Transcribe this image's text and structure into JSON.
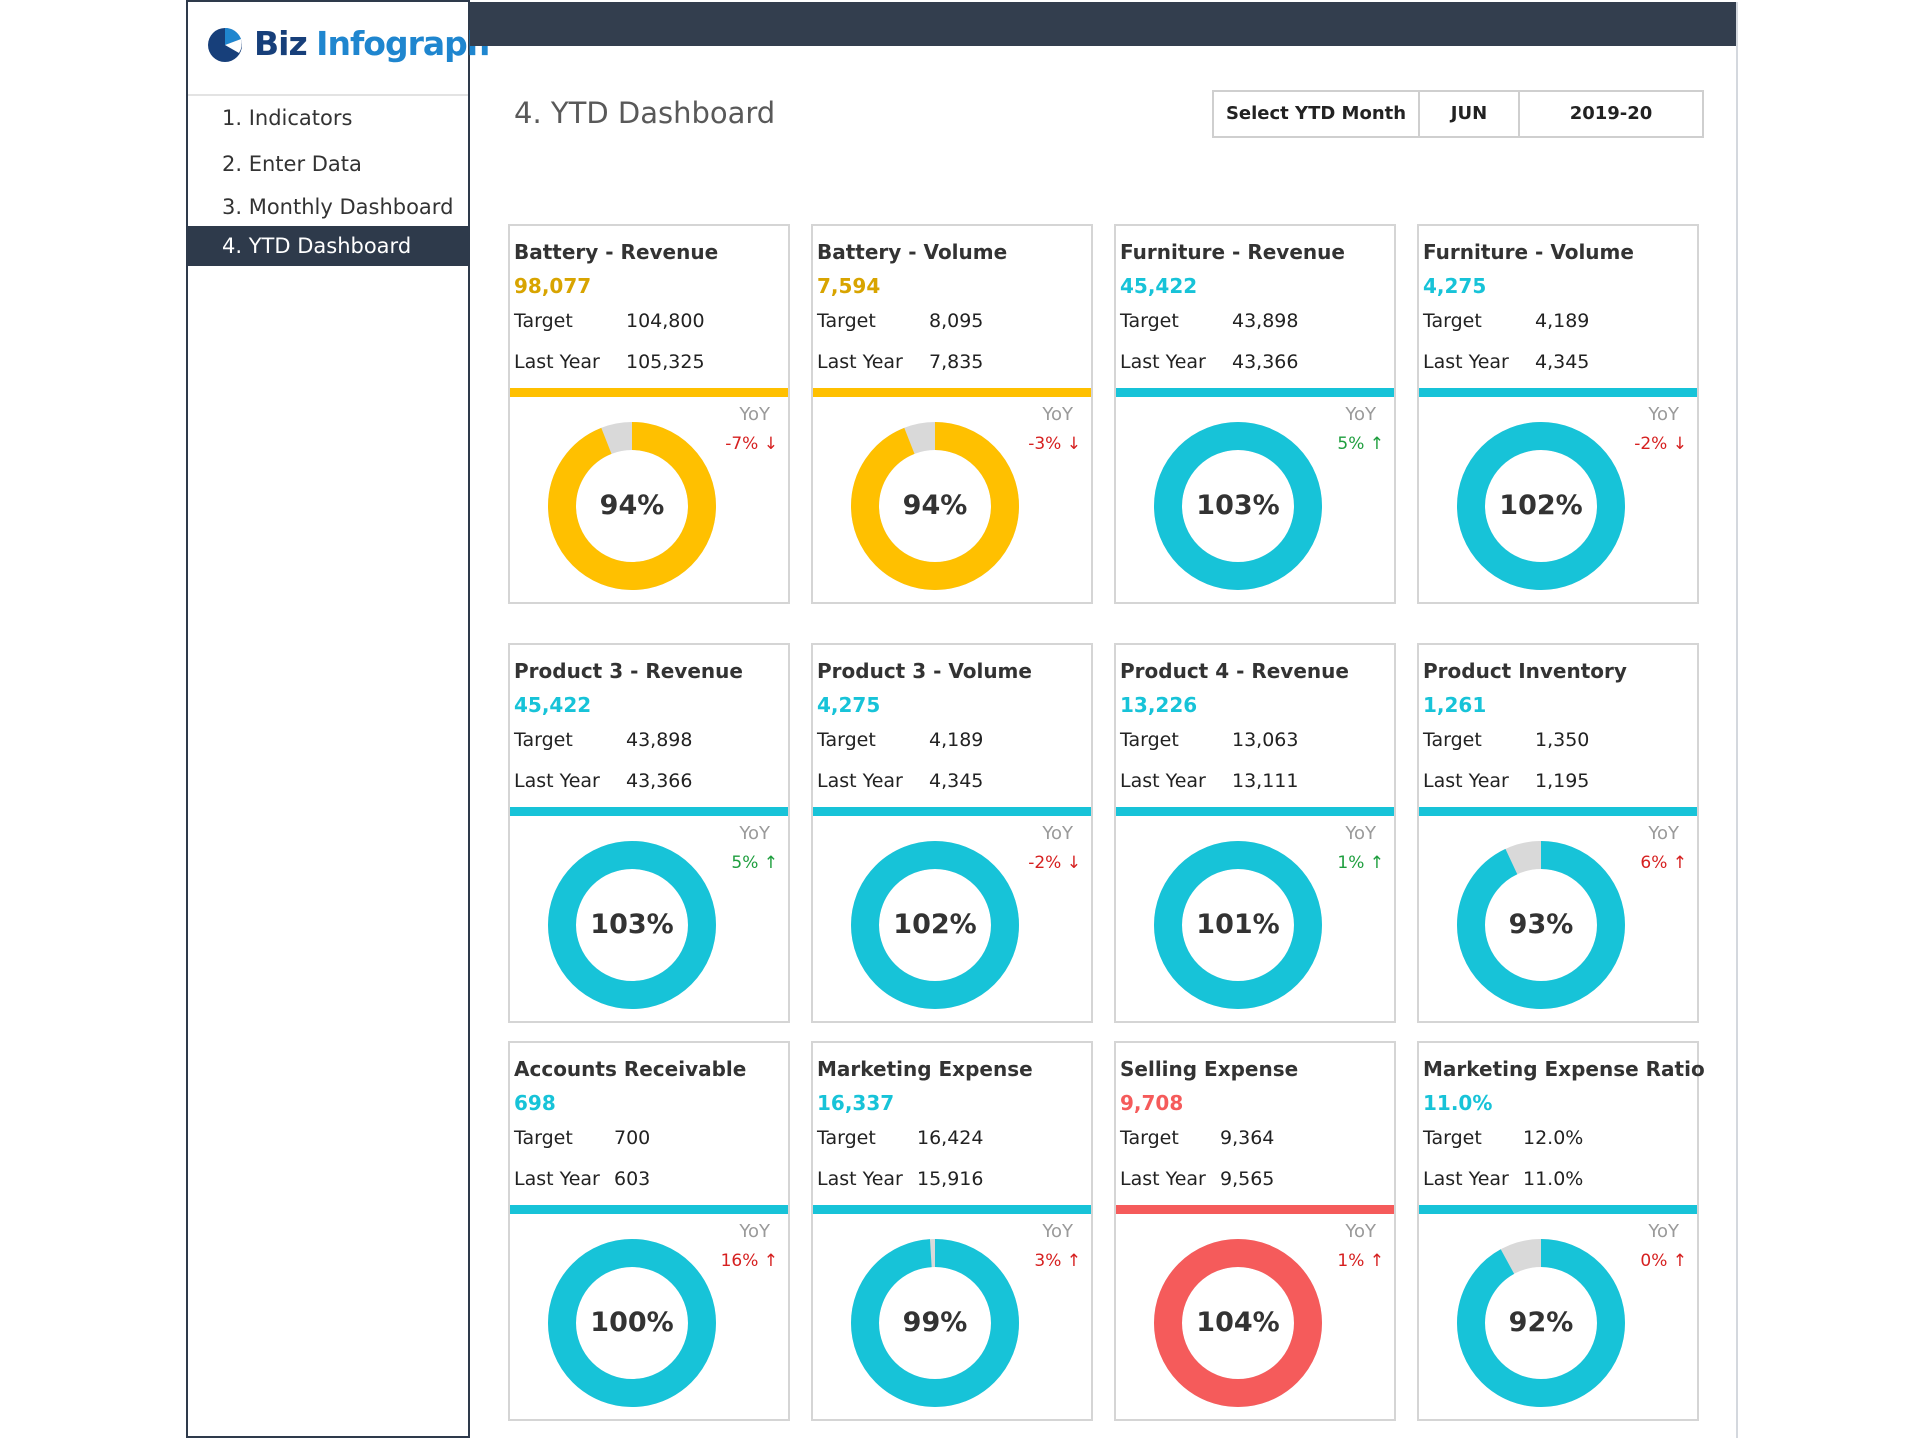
{
  "app": {
    "brand_part1": "Biz",
    "brand_part2": "Infograph",
    "accent": "#2e3a4b"
  },
  "nav": {
    "items": [
      {
        "label": "1. Indicators",
        "active": false
      },
      {
        "label": "2. Enter Data",
        "active": false
      },
      {
        "label": "3. Monthly Dashboard",
        "active": false
      },
      {
        "label": "4. YTD Dashboard",
        "active": true
      }
    ]
  },
  "header": {
    "title": "4. YTD Dashboard",
    "select_label": "Select YTD Month",
    "month": "JUN",
    "year": "2019-20"
  },
  "colors": {
    "gold": "#ffc000",
    "gold_text": "#d8a400",
    "cyan": "#17c3d8",
    "red": "#f55b5b",
    "remainder": "#d9d9d9",
    "up_green": "#1e9e3e",
    "down_red": "#d62020"
  },
  "cards": [
    {
      "title": "Battery - Revenue",
      "value": "98,077",
      "target_label": "Target",
      "target": "104,800",
      "last_year_label": "Last Year",
      "last_year": "105,325",
      "yoy_label": "YoY",
      "yoy": "-7% ↓",
      "yoy_color": "down",
      "percent_label": "94%",
      "percent": 94,
      "color": "gold"
    },
    {
      "title": "Battery - Volume",
      "value": "7,594",
      "target_label": "Target",
      "target": "8,095",
      "last_year_label": "Last Year",
      "last_year": "7,835",
      "yoy_label": "YoY",
      "yoy": "-3% ↓",
      "yoy_color": "down",
      "percent_label": "94%",
      "percent": 94,
      "color": "gold"
    },
    {
      "title": "Furniture - Revenue",
      "value": "45,422",
      "target_label": "Target",
      "target": "43,898",
      "last_year_label": "Last Year",
      "last_year": "43,366",
      "yoy_label": "YoY",
      "yoy": "5% ↑",
      "yoy_color": "up",
      "percent_label": "103%",
      "percent": 103,
      "color": "cyan"
    },
    {
      "title": "Furniture - Volume",
      "value": "4,275",
      "target_label": "Target",
      "target": "4,189",
      "last_year_label": "Last Year",
      "last_year": "4,345",
      "yoy_label": "YoY",
      "yoy": "-2% ↓",
      "yoy_color": "down",
      "percent_label": "102%",
      "percent": 102,
      "color": "cyan"
    },
    {
      "title": "Product 3 - Revenue",
      "value": "45,422",
      "target_label": "Target",
      "target": "43,898",
      "last_year_label": "Last Year",
      "last_year": "43,366",
      "yoy_label": "YoY",
      "yoy": "5% ↑",
      "yoy_color": "up",
      "percent_label": "103%",
      "percent": 103,
      "color": "cyan"
    },
    {
      "title": "Product 3 - Volume",
      "value": "4,275",
      "target_label": "Target",
      "target": "4,189",
      "last_year_label": "Last Year",
      "last_year": "4,345",
      "yoy_label": "YoY",
      "yoy": "-2% ↓",
      "yoy_color": "down",
      "percent_label": "102%",
      "percent": 102,
      "color": "cyan"
    },
    {
      "title": "Product 4 - Revenue",
      "value": "13,226",
      "target_label": "Target",
      "target": "13,063",
      "last_year_label": "Last Year",
      "last_year": "13,111",
      "yoy_label": "YoY",
      "yoy": "1% ↑",
      "yoy_color": "up",
      "percent_label": "101%",
      "percent": 101,
      "color": "cyan"
    },
    {
      "title": "Product Inventory",
      "value": "1,261",
      "target_label": "Target",
      "target": "1,350",
      "last_year_label": "Last Year",
      "last_year": "1,195",
      "yoy_label": "YoY",
      "yoy": "6% ↑",
      "yoy_color": "down",
      "percent_label": "93%",
      "percent": 93,
      "color": "cyan"
    },
    {
      "title": "Accounts Receivable",
      "value": "698",
      "target_label": "Target",
      "target": "700",
      "last_year_label": "Last Year",
      "last_year": "603",
      "yoy_label": "YoY",
      "yoy": "16% ↑",
      "yoy_color": "down",
      "percent_label": "100%",
      "percent": 100,
      "color": "cyan"
    },
    {
      "title": "Marketing Expense",
      "value": "16,337",
      "target_label": "Target",
      "target": "16,424",
      "last_year_label": "Last Year",
      "last_year": "15,916",
      "yoy_label": "YoY",
      "yoy": "3% ↑",
      "yoy_color": "down",
      "percent_label": "99%",
      "percent": 99,
      "color": "cyan"
    },
    {
      "title": "Selling Expense",
      "value": "9,708",
      "target_label": "Target",
      "target": "9,364",
      "last_year_label": "Last Year",
      "last_year": "9,565",
      "yoy_label": "YoY",
      "yoy": "1% ↑",
      "yoy_color": "down",
      "percent_label": "104%",
      "percent": 104,
      "color": "red"
    },
    {
      "title": "Marketing Expense Ratio",
      "value": "11.0%",
      "target_label": "Target",
      "target": "12.0%",
      "last_year_label": "Last Year",
      "last_year": "11.0%",
      "yoy_label": "YoY",
      "yoy": "0% ↑",
      "yoy_color": "down",
      "percent_label": "92%",
      "percent": 92,
      "color": "cyan"
    }
  ]
}
